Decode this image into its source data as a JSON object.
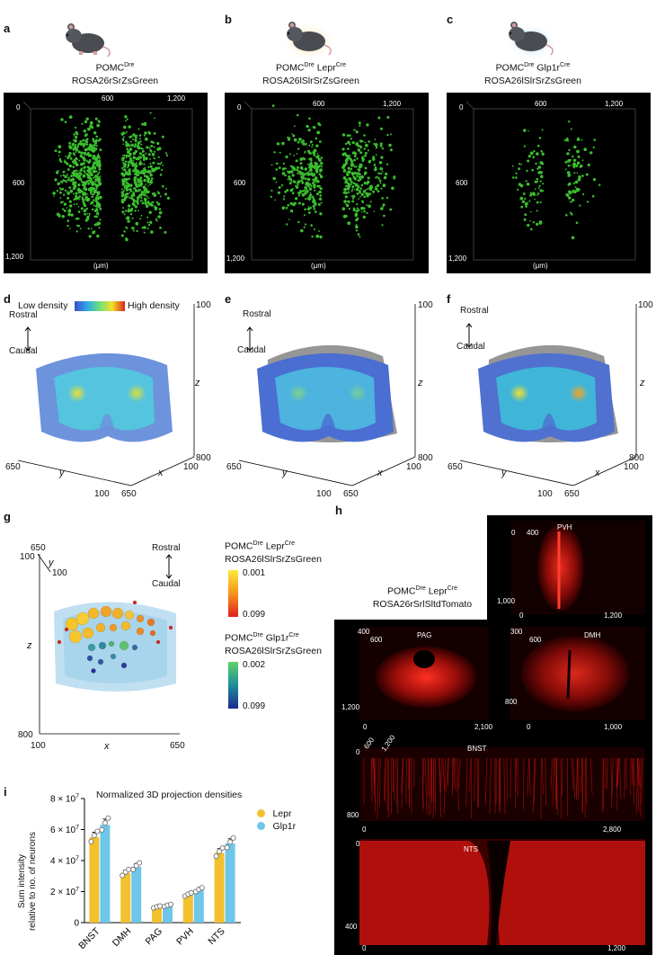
{
  "panels": {
    "a": {
      "label": "a",
      "line1": "POMC",
      "sup1": "Dre",
      "line2": "ROSA26rSrZsGreen",
      "ticks_top": [
        "0",
        "600",
        "1,200"
      ],
      "ticks_left": [
        "600",
        "1,200"
      ],
      "unit": "(μm)"
    },
    "b": {
      "label": "b",
      "line1": "POMC",
      "sup1": "Dre",
      "line1b": " Lepr",
      "sup1b": "Cre",
      "line2": "ROSA26lSlrSrZsGreen",
      "ticks_top": [
        "0",
        "600",
        "1,200"
      ],
      "ticks_left": [
        "600",
        "1,200"
      ],
      "unit": "(μm)"
    },
    "c": {
      "label": "c",
      "line1": "POMC",
      "sup1": "Dre",
      "line1b": " Glp1r",
      "sup1b": "Cre",
      "line2": "ROSA26lSlrSrZsGreen",
      "ticks_top": [
        "0",
        "600",
        "1,200"
      ],
      "ticks_left": [
        "600",
        "1,200"
      ],
      "unit": "(μm)"
    },
    "d": {
      "label": "d",
      "legend_low": "Low density",
      "legend_high": "High density",
      "rostral": "Rostral",
      "caudal": "Caudal",
      "z_top": "100",
      "z_bottom": "800",
      "z_axis": "z",
      "y_left": "650",
      "y_label": "y",
      "y_right": "100",
      "x_left": "650",
      "x_label": "x",
      "x_right": "100"
    },
    "e": {
      "label": "e",
      "rostral": "Rostral",
      "caudal": "Caudal",
      "z_top": "100",
      "z_bottom": "800",
      "z_axis": "z",
      "y_left": "650",
      "y_label": "y",
      "y_right": "100",
      "x_left": "650",
      "x_label": "x",
      "x_right": "100"
    },
    "f": {
      "label": "f",
      "rostral": "Rostral",
      "caudal": "Caudal",
      "z_top": "100",
      "z_bottom": "800",
      "z_axis": "z",
      "y_left": "650",
      "y_label": "y",
      "y_right": "100",
      "x_left": "650",
      "x_label": "x",
      "x_right": "100"
    },
    "g": {
      "label": "g",
      "y_top": "650",
      "y_label": "y",
      "y_100": "100",
      "z_top": "100",
      "z_label": "z",
      "z_bottom": "800",
      "x_left": "100",
      "x_label": "x",
      "x_right": "650",
      "rostral": "Rostral",
      "caudal": "Caudal",
      "leg1_line1": "POMC",
      "leg1_sup1": "Dre",
      "leg1_line1b": " Lepr",
      "leg1_sup1b": "Cre",
      "leg1_line2": "ROSA26lSlrSrZsGreen",
      "leg1_top": "0.001",
      "leg1_bottom": "0.099",
      "leg2_line1": "POMC",
      "leg2_sup1": "Dre",
      "leg2_line1b": " Glp1r",
      "leg2_sup1b": "Cre",
      "leg2_line2": "ROSA26lSlrSrZsGreen",
      "leg2_top": "0.002",
      "leg2_bottom": "0.099"
    },
    "h": {
      "label": "h",
      "line1": "POMC",
      "sup1": "Dre",
      "line1b": " Lepr",
      "sup1b": "Cre",
      "line2": "ROSA26rSrlSltdTomato",
      "pvh": {
        "name": "PVH",
        "t0": "0",
        "t400": "400",
        "b1000": "1,000",
        "bottom0": "0",
        "bottom1200": "1,200"
      },
      "pag": {
        "name": "PAG",
        "t400": "400",
        "t600": "600",
        "l1200": "1,200",
        "b0": "0",
        "b2100": "2,100"
      },
      "dmh": {
        "name": "DMH",
        "t300": "300",
        "t600": "600",
        "l800": "800",
        "b0": "0",
        "b1000": "1,000"
      },
      "bnst": {
        "name": "BNST",
        "t600": "600",
        "t1200": "1,200",
        "l0": "0",
        "l800": "800",
        "b0": "0",
        "b2800": "2,800"
      },
      "nts": {
        "name": "NTS",
        "l0": "0",
        "l400": "400",
        "b0": "0",
        "b1200": "1,200"
      }
    },
    "i": {
      "label": "i",
      "title": "Normalized 3D projection densities",
      "ylabel1": "Sum intensity",
      "ylabel2": "relative to no. of neurons",
      "legend": [
        "Lepr",
        "Glp1r"
      ]
    }
  },
  "colors": {
    "lepr": "#f2c12e",
    "glp1r": "#6ec6e8",
    "panel_bg": "#000000",
    "green_dot": "#3bbf2e",
    "red": "#e0201b"
  },
  "chart_data": {
    "type": "bar",
    "title": "Normalized 3D projection densities",
    "ylabel": "Sum intensity relative to no. of neurons",
    "categories": [
      "BNST",
      "DMH",
      "PAG",
      "PVH",
      "NTS"
    ],
    "ylim": [
      0,
      80000000
    ],
    "yticks": [
      0,
      20000000,
      40000000,
      60000000,
      80000000
    ],
    "yticklabels": [
      "0",
      "2 × 10^7",
      "4 × 10^7",
      "6 × 10^7",
      "8 × 10^7"
    ],
    "series": [
      {
        "name": "Lepr",
        "values": [
          55000000,
          32000000,
          10000000,
          18000000,
          45000000
        ]
      },
      {
        "name": "Glp1r",
        "values": [
          63000000,
          36000000,
          11000000,
          21000000,
          51000000
        ]
      }
    ]
  }
}
